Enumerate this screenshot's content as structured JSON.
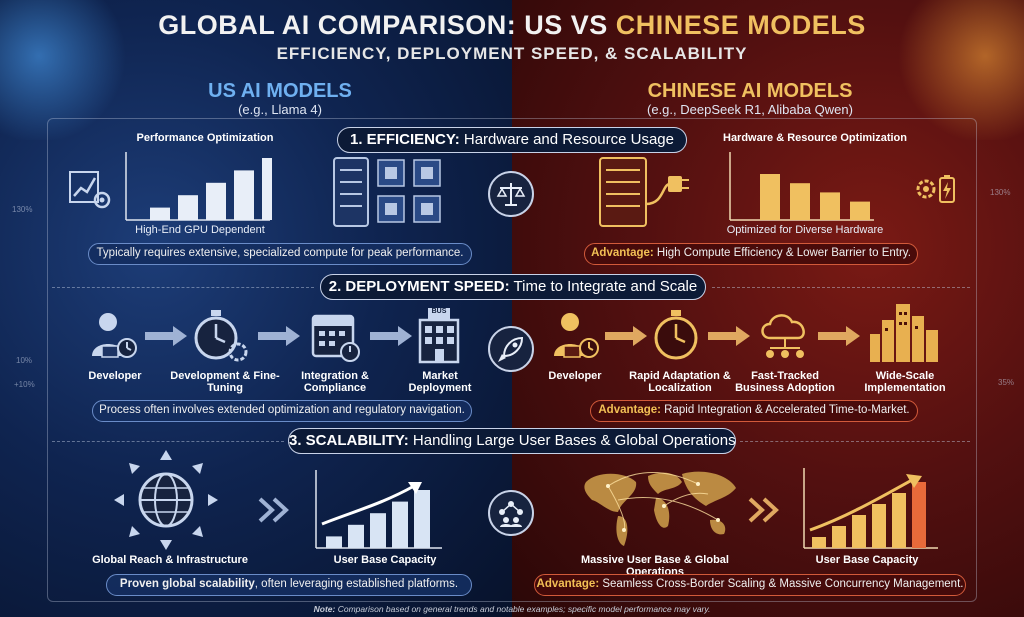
{
  "header": {
    "title_a": "Global AI Comparison: US vs ",
    "title_b": "Chinese Models",
    "subtitle": "Efficiency, Deployment Speed, & Scalability"
  },
  "us": {
    "heading": "US AI MODELS",
    "example": "(e.g., Llama 4)"
  },
  "cn": {
    "heading": "CHINESE AI MODELS",
    "example": "(e.g., DeepSeek R1, Alibaba Qwen)"
  },
  "sections": {
    "efficiency": {
      "number_title": "1. EFFICIENCY:",
      "rest": " Hardware and Resource Usage",
      "us_chart_title": "Performance Optimization",
      "us_chart_caption": "High-End GPU Dependent",
      "us_note": "Typically requires extensive, specialized compute for peak performance.",
      "cn_chart_title": "Hardware & Resource Optimization",
      "cn_chart_caption": "Optimized for Diverse Hardware",
      "cn_note_adv": "Advantage:",
      "cn_note": " High Compute Efficiency & Lower Barrier to Entry."
    },
    "deployment": {
      "number_title": "2. DEPLOYMENT SPEED:",
      "rest": " Time to Integrate and Scale",
      "us_steps": [
        "Developer",
        "Development & Fine-Tuning",
        "Integration & Compliance",
        "Market Deployment"
      ],
      "bus_label": "BUS",
      "us_note": "Process often involves extended optimization and regulatory navigation.",
      "cn_steps": [
        "Developer",
        "Rapid Adaptation & Localization",
        "Fast-Tracked Business Adoption",
        "Wide-Scale Implementation"
      ],
      "cn_note_adv": "Advantage:",
      "cn_note": " Rapid Integration & Accelerated Time-to-Market."
    },
    "scalability": {
      "number_title": "3. SCALABILITY:",
      "rest": " Handling Large User Bases & Global Operations",
      "us_left_label": "Global Reach & Infrastructure",
      "us_chart_label": "User Base Capacity",
      "us_note_bold": "Proven global scalability",
      "us_note": ", often leveraging established platforms.",
      "cn_left_label": "Massive User Base & Global Operations",
      "cn_chart_label": "User Base Capacity",
      "cn_note_adv": "Advantage:",
      "cn_note": " Seamless Cross-Border Scaling & Massive Concurrency Management."
    }
  },
  "side_numbers": {
    "left_a": "130%",
    "left_b": "10%",
    "left_c": "+10%",
    "right_a": "130%",
    "right_b": "35%"
  },
  "footnote_bold": "Note:",
  "footnote": " Comparison based on general trends and notable examples; specific model performance may vary.",
  "colors": {
    "us_blue": "#5aa0e8",
    "cn_gold": "#f0c060",
    "cn_red": "#d25a3a"
  },
  "chart_data": [
    {
      "type": "bar",
      "name": "us_efficiency",
      "values": [
        1,
        2,
        3,
        4,
        5
      ]
    },
    {
      "type": "bar",
      "name": "cn_efficiency",
      "values": [
        5,
        4,
        3,
        2
      ]
    },
    {
      "type": "bar",
      "name": "us_scalability",
      "values": [
        1,
        2,
        3,
        4,
        5
      ]
    },
    {
      "type": "bar",
      "name": "cn_scalability",
      "values": [
        1,
        2,
        3,
        4,
        5,
        6
      ]
    }
  ]
}
